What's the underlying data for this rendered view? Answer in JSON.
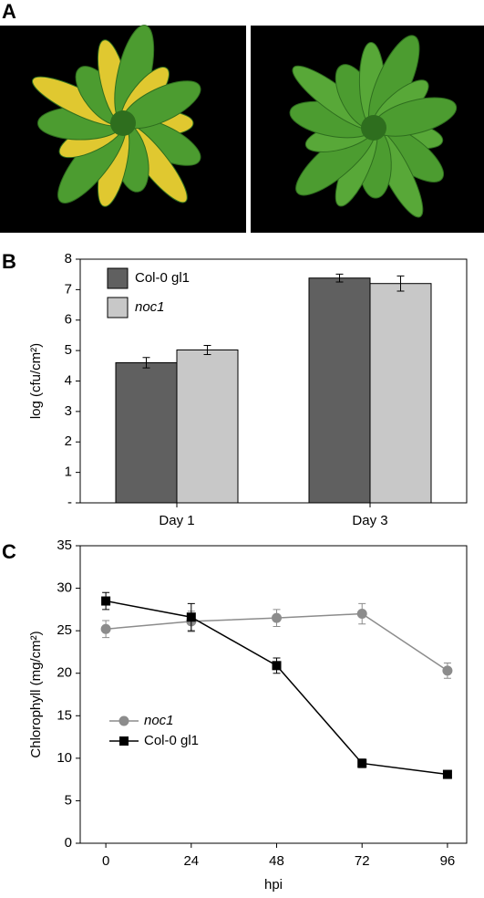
{
  "panel_labels": [
    "A",
    "B",
    "C"
  ],
  "chart_data": [
    {
      "type": "bar",
      "ylabel": "log (cfu/cm²)",
      "categories": [
        "Day 1",
        "Day 3"
      ],
      "series": [
        {
          "name": "Col-0 gl1",
          "color": "#606060",
          "values": [
            4.6,
            7.38
          ],
          "errors": [
            0.17,
            0.13
          ]
        },
        {
          "name": "noc1",
          "color": "#c8c8c8",
          "values": [
            5.02,
            7.2
          ],
          "errors": [
            0.15,
            0.25
          ]
        }
      ],
      "ylim": [
        0,
        8
      ],
      "yticks": [
        {
          "value": 0,
          "label": "-"
        },
        1,
        2,
        3,
        4,
        5,
        6,
        7,
        8
      ],
      "legend": "top-left"
    },
    {
      "type": "line",
      "xlabel": "hpi",
      "ylabel": "Chlorophyll (mg/cm²)",
      "x": [
        0,
        24,
        48,
        72,
        96
      ],
      "series": [
        {
          "name": "noc1",
          "color": "#8c8c8c",
          "marker": "circle",
          "values": [
            25.2,
            26.1,
            26.5,
            27,
            20.3
          ],
          "errors": [
            1,
            1.2,
            1,
            1.2,
            0.9
          ]
        },
        {
          "name": "Col-0 gl1",
          "color": "#000000",
          "marker": "square",
          "values": [
            28.5,
            26.6,
            20.9,
            9.4,
            8.1
          ],
          "errors": [
            1,
            1.6,
            0.9,
            0.5,
            0.3
          ]
        }
      ],
      "xlim": [
        -7.2,
        101.4
      ],
      "xticks": [
        0,
        24,
        48,
        72,
        96
      ],
      "ylim": [
        0,
        35
      ],
      "yticks": [
        0,
        5,
        10,
        15,
        20,
        25,
        30,
        35
      ],
      "legend": "lower-left"
    }
  ]
}
